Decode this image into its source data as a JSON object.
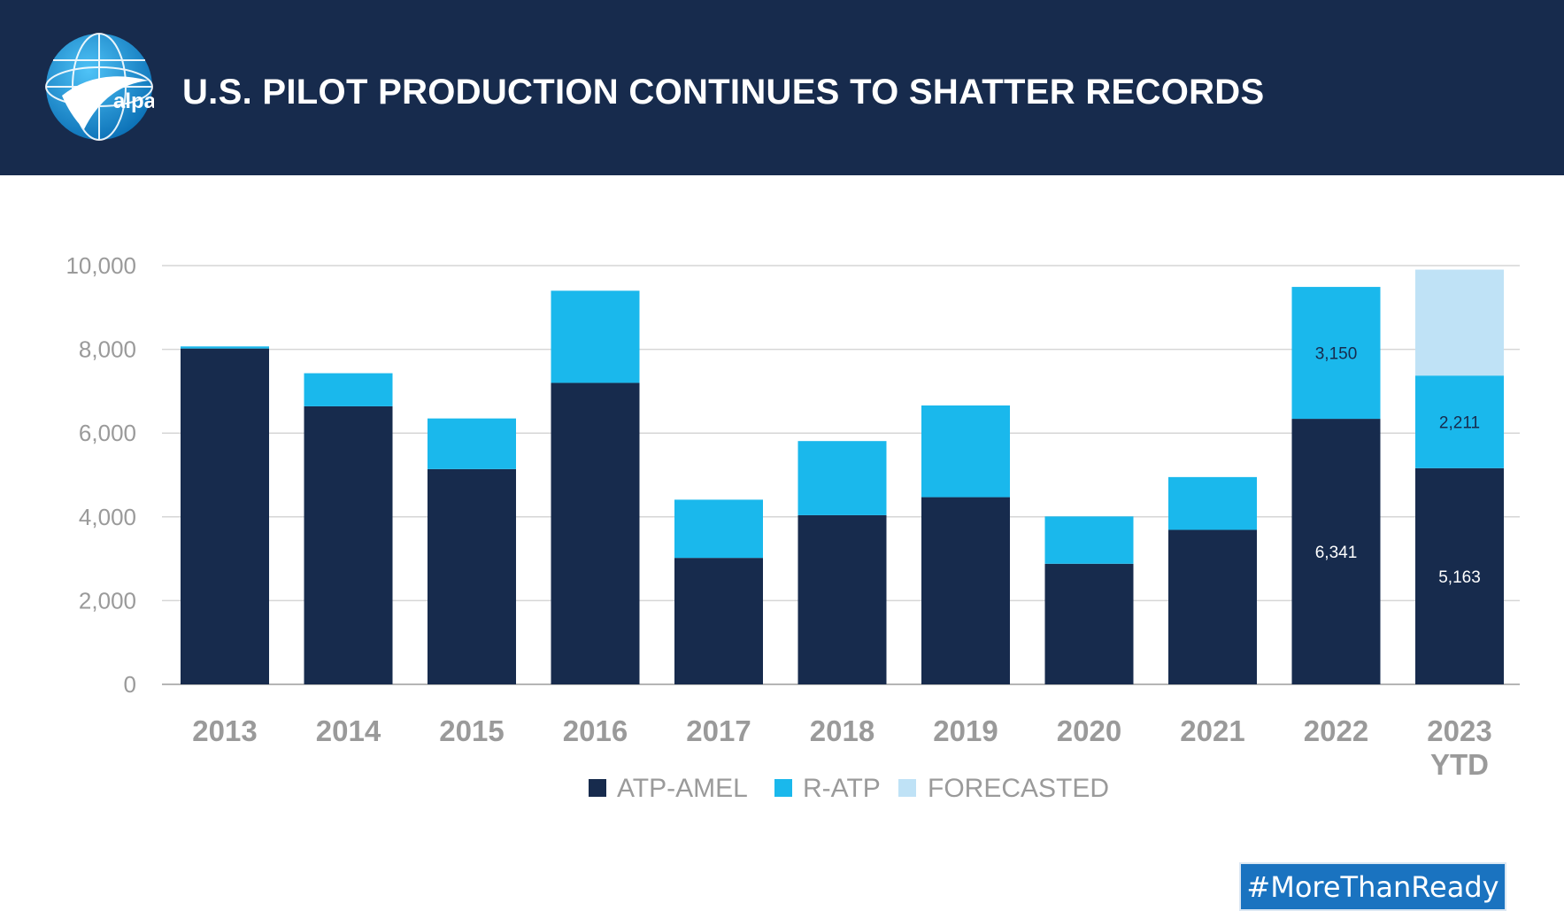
{
  "header": {
    "title": "U.S. PILOT PRODUCTION CONTINUES TO SHATTER RECORDS",
    "logo_text": "alpa"
  },
  "footer": {
    "hashtag": "#MoreThanReady"
  },
  "colors": {
    "header_bg": "#172b4d",
    "atp_amel": "#172b4d",
    "r_atp": "#1ab8ec",
    "forecasted": "#bfe2f6",
    "axis_text": "#9a9a9a",
    "hashtag_bg": "#1a73c0"
  },
  "chart_data": {
    "type": "bar",
    "stacked": true,
    "categories": [
      "2013",
      "2014",
      "2015",
      "2016",
      "2017",
      "2018",
      "2019",
      "2020",
      "2021",
      "2022",
      "2023\nYTD"
    ],
    "series": [
      {
        "name": "ATP-AMEL",
        "values": [
          8020,
          6640,
          5140,
          7200,
          3020,
          4040,
          4470,
          2880,
          3690,
          6341,
          5163
        ]
      },
      {
        "name": "R-ATP",
        "values": [
          50,
          790,
          1210,
          2200,
          1390,
          1770,
          2190,
          1130,
          1260,
          3150,
          2211
        ]
      },
      {
        "name": "FORECASTED",
        "values": [
          0,
          0,
          0,
          0,
          0,
          0,
          0,
          0,
          0,
          0,
          2530
        ]
      }
    ],
    "data_labels": [
      {
        "category_index": 9,
        "series_index": 0,
        "text": "6,341"
      },
      {
        "category_index": 9,
        "series_index": 1,
        "text": "3,150"
      },
      {
        "category_index": 10,
        "series_index": 0,
        "text": "5,163"
      },
      {
        "category_index": 10,
        "series_index": 1,
        "text": "2,211"
      }
    ],
    "yticks": [
      "0",
      "2,000",
      "4,000",
      "6,000",
      "8,000",
      "10,000"
    ],
    "ylim": [
      0,
      10000
    ],
    "grid": true,
    "legend_position": "bottom-center"
  }
}
